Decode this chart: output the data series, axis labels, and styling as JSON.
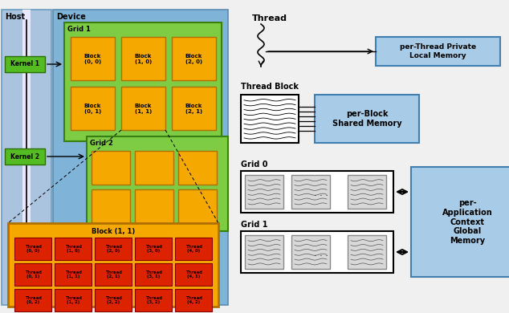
{
  "bg_color": "#f0f0f0",
  "host_color": "#aac4e0",
  "device_color": "#7fb3d8",
  "grid_green": "#7dcc44",
  "block_orange": "#f5a800",
  "thread_red": "#dd2200",
  "kernel_green": "#55bb22",
  "mem_blue": "#a8cce8",
  "white": "#ffffff",
  "gray_block": "#d8d8d8",
  "labels": {
    "host": "Host",
    "device": "Device",
    "grid1": "Grid 1",
    "grid2": "Grid 2",
    "kernel1": "Kernel 1",
    "kernel2": "Kernel 2",
    "block11": "Block (1, 1)",
    "thread": "Thread",
    "thread_block": "Thread Block",
    "grid0": "Grid 0",
    "grid1r": "Grid 1",
    "per_thread": "per-Thread Private\nLocal Memory",
    "per_block": "per-Block\nShared Memory",
    "per_app": "per-\nApplication\nContext\nGlobal\nMemory"
  },
  "grid1_blocks": [
    [
      "Block\n(0, 0)",
      "Block\n(1, 0)",
      "Block\n(2, 0)"
    ],
    [
      "Block\n(0, 1)",
      "Block\n(1, 1)",
      "Block\n(2, 1)"
    ]
  ],
  "thread_labels": [
    [
      "Thread\n(0, 0)",
      "Thread\n(1, 0)",
      "Thread\n(2, 0)",
      "Thread\n(3, 0)",
      "Thread\n(4, 0)"
    ],
    [
      "Thread\n(0, 1)",
      "Thread\n(1, 1)",
      "Thread\n(2, 1)",
      "Thread\n(3, 1)",
      "Thread\n(4, 1)"
    ],
    [
      "Thread\n(0, 2)",
      "Thread\n(1, 2)",
      "Thread\n(2, 2)",
      "Thread\n(3, 2)",
      "Thread\n(4, 2)"
    ]
  ]
}
